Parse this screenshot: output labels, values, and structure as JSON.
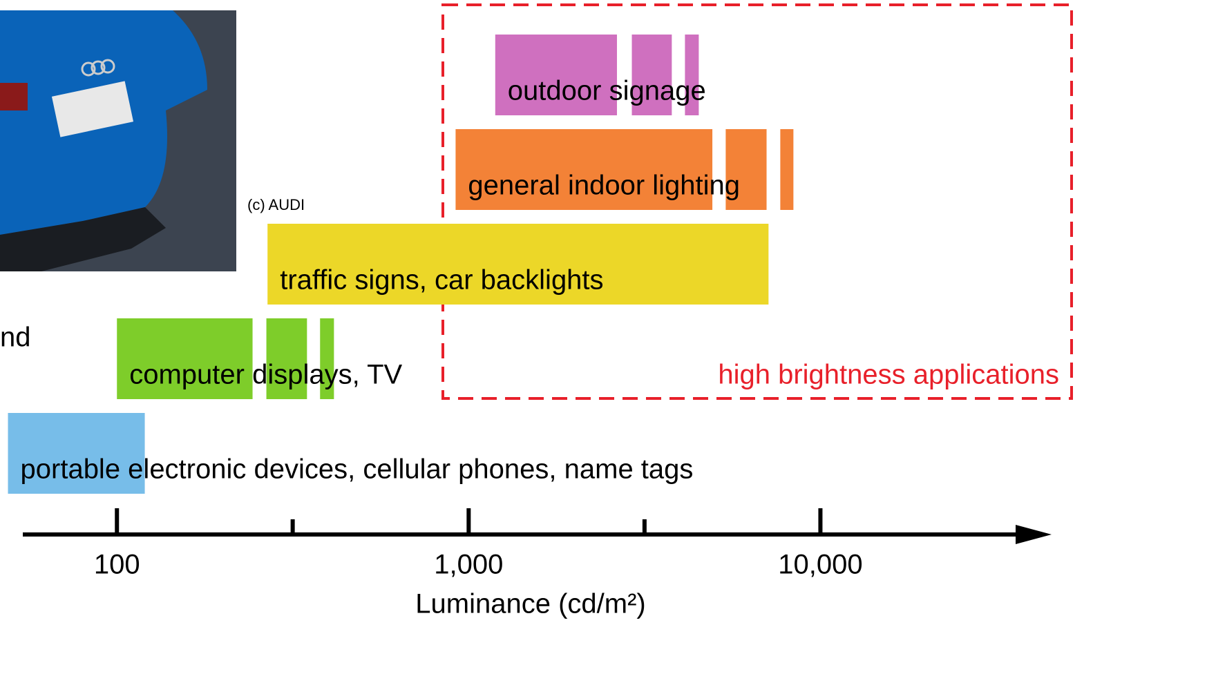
{
  "chart_data": {
    "type": "range",
    "xlabel": "Luminance (cd/m²)",
    "xscale": "log",
    "xlim": [
      54,
      45000
    ],
    "xticks": [
      100,
      {
        "value": 1000,
        "label": "1,000"
      },
      {
        "value": 10000,
        "label": "10,000"
      }
    ],
    "xminorticks": [
      316,
      3162
    ],
    "series": [
      {
        "name": "portable electronic devices, cellular phones, name tags",
        "color": "#77bde9",
        "segments": [
          [
            49,
            120
          ]
        ]
      },
      {
        "name": "computer displays, TV",
        "color": "#7ecd2a",
        "segments": [
          [
            100,
            243
          ],
          [
            266,
            347
          ],
          [
            378,
            414
          ]
        ]
      },
      {
        "name": "traffic signs, car backlights",
        "color": "#ecd728",
        "segments": [
          [
            268,
            7120
          ]
        ]
      },
      {
        "name": "general indoor lighting",
        "color": "#f38237",
        "segments": [
          [
            918,
            4930
          ],
          [
            5380,
            7030
          ],
          [
            7690,
            8380
          ]
        ]
      },
      {
        "name": "outdoor signage",
        "color": "#cf70bf",
        "segments": [
          [
            1190,
            2640
          ],
          [
            2910,
            3780
          ],
          [
            4120,
            4510
          ]
        ]
      }
    ],
    "highlight": {
      "label": "high brightness applications",
      "color": "#e8202a"
    },
    "photo_credit": "(c) AUDI",
    "side_text": "nd"
  }
}
